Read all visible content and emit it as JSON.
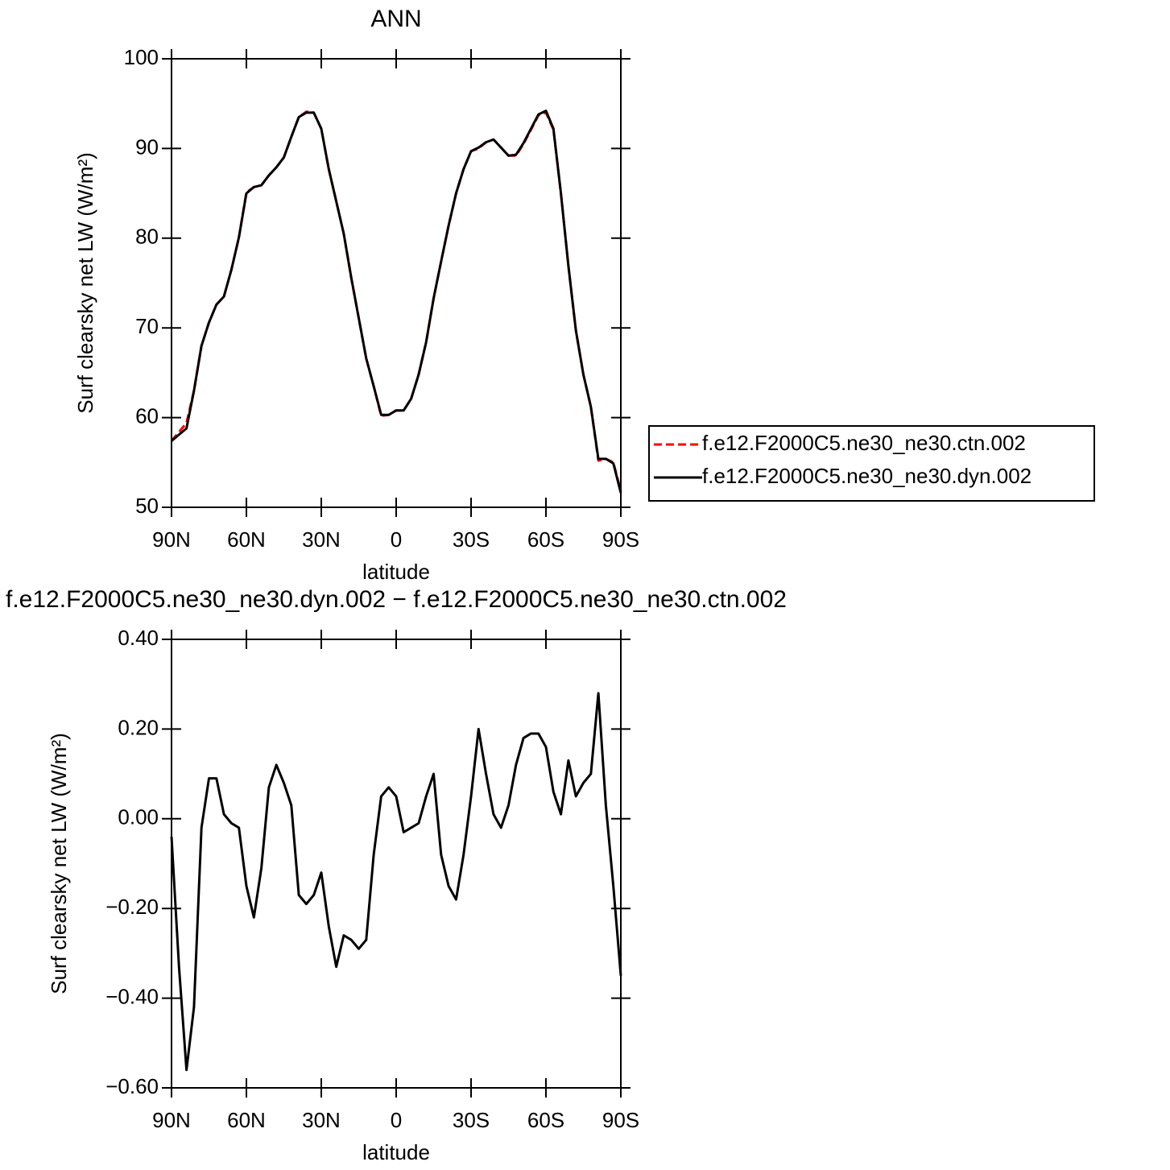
{
  "chart_data": [
    {
      "type": "line",
      "title": "ANN",
      "xlabel": "latitude",
      "ylabel": "Surf clearsky net LW (W/m²)",
      "x": [
        90,
        87,
        84,
        81,
        78,
        75,
        72,
        69,
        66,
        63,
        60,
        57,
        54,
        51,
        48,
        45,
        42,
        39,
        36,
        33,
        30,
        27,
        24,
        21,
        18,
        15,
        12,
        9,
        6,
        3,
        0,
        -3,
        -6,
        -9,
        -12,
        -15,
        -18,
        -21,
        -24,
        -27,
        -30,
        -33,
        -36,
        -39,
        -42,
        -45,
        -48,
        -51,
        -54,
        -57,
        -60,
        -63,
        -66,
        -69,
        -72,
        -75,
        -78,
        -81,
        -84,
        -87,
        -90
      ],
      "xlim": [
        90,
        -90
      ],
      "xticks": [
        {
          "value": 90,
          "label": "90N"
        },
        {
          "value": 60,
          "label": "60N"
        },
        {
          "value": 30,
          "label": "30N"
        },
        0,
        {
          "value": -30,
          "label": "30S"
        },
        {
          "value": -60,
          "label": "60S"
        },
        {
          "value": -90,
          "label": "90S"
        }
      ],
      "ylim": [
        50,
        100
      ],
      "yticks": [
        50,
        60,
        70,
        80,
        90,
        100
      ],
      "legend": "outside right",
      "series": [
        {
          "name": "f.e12.F2000C5.ne30_ne30.ctn.002",
          "color": "#ff0000",
          "linestyle": "dashed",
          "values": [
            57.4,
            58.4,
            59.4,
            63.0,
            68.0,
            70.6,
            72.6,
            73.5,
            76.5,
            80.1,
            85.1,
            85.7,
            85.9,
            87.0,
            87.9,
            89.0,
            91.3,
            93.5,
            94.1,
            94.0,
            92.2,
            87.7,
            84.1,
            80.5,
            75.6,
            71.1,
            66.6,
            63.5,
            60.2,
            60.3,
            60.8,
            60.8,
            62.1,
            64.8,
            68.4,
            73.3,
            77.4,
            81.4,
            85.0,
            87.7,
            89.7,
            90.0,
            90.7,
            91.0,
            90.1,
            89.2,
            89.2,
            90.5,
            92.1,
            93.7,
            94.0,
            92.1,
            85.0,
            76.9,
            69.7,
            64.8,
            61.2,
            55.2,
            55.4,
            55.0,
            51.8
          ]
        },
        {
          "name": "f.e12.F2000C5.ne30_ne30.dyn.002",
          "color": "#000000",
          "linestyle": "solid",
          "values": [
            57.4,
            58.1,
            58.8,
            63.0,
            68.0,
            70.6,
            72.6,
            73.5,
            76.5,
            80.1,
            85.0,
            85.7,
            85.9,
            87.0,
            87.9,
            89.0,
            91.3,
            93.5,
            94.0,
            94.0,
            92.2,
            87.7,
            84.1,
            80.5,
            75.6,
            71.1,
            66.6,
            63.5,
            60.3,
            60.3,
            60.8,
            60.8,
            62.1,
            64.8,
            68.4,
            73.3,
            77.4,
            81.4,
            85.0,
            87.7,
            89.7,
            90.1,
            90.7,
            91.0,
            90.1,
            89.2,
            89.3,
            90.6,
            92.2,
            93.8,
            94.2,
            92.2,
            85.0,
            76.9,
            69.7,
            64.8,
            61.2,
            55.4,
            55.4,
            54.9,
            51.6
          ]
        }
      ]
    },
    {
      "type": "line",
      "title": "f.e12.F2000C5.ne30_ne30.dyn.002 − f.e12.F2000C5.ne30_ne30.ctn.002",
      "xlabel": "latitude",
      "ylabel": "Surf clearsky net LW (W/m²)",
      "x": [
        90,
        87,
        84,
        81,
        78,
        75,
        72,
        69,
        66,
        63,
        60,
        57,
        54,
        51,
        48,
        45,
        42,
        39,
        36,
        33,
        30,
        27,
        24,
        21,
        18,
        15,
        12,
        9,
        6,
        3,
        0,
        -3,
        -6,
        -9,
        -12,
        -15,
        -18,
        -21,
        -24,
        -27,
        -30,
        -33,
        -36,
        -39,
        -42,
        -45,
        -48,
        -51,
        -54,
        -57,
        -60,
        -63,
        -66,
        -69,
        -72,
        -75,
        -78,
        -81,
        -84,
        -87,
        -90
      ],
      "xlim": [
        90,
        -90
      ],
      "xticks": [
        {
          "value": 90,
          "label": "90N"
        },
        {
          "value": 60,
          "label": "60N"
        },
        {
          "value": 30,
          "label": "30N"
        },
        0,
        {
          "value": -30,
          "label": "30S"
        },
        {
          "value": -60,
          "label": "60S"
        },
        {
          "value": -90,
          "label": "90S"
        }
      ],
      "ylim": [
        -0.6,
        0.4
      ],
      "yticks": [
        {
          "value": -0.6,
          "label": "−0.60"
        },
        {
          "value": -0.4,
          "label": "−0.40"
        },
        {
          "value": -0.2,
          "label": "−0.20"
        },
        {
          "value": 0,
          "label": "0.00"
        },
        {
          "value": 0.2,
          "label": "0.20"
        },
        {
          "value": 0.4,
          "label": "0.40"
        }
      ],
      "series": [
        {
          "color": "#000000",
          "linestyle": "solid",
          "values": [
            -0.04,
            -0.33,
            -0.56,
            -0.42,
            -0.02,
            0.09,
            0.09,
            0.01,
            -0.01,
            -0.02,
            -0.15,
            -0.22,
            -0.11,
            0.07,
            0.12,
            0.08,
            0.03,
            -0.17,
            -0.19,
            -0.17,
            -0.12,
            -0.24,
            -0.33,
            -0.26,
            -0.27,
            -0.29,
            -0.27,
            -0.08,
            0.05,
            0.07,
            0.05,
            -0.03,
            -0.02,
            -0.01,
            0.05,
            0.1,
            -0.08,
            -0.15,
            -0.18,
            -0.08,
            0.05,
            0.2,
            0.1,
            0.01,
            -0.02,
            0.03,
            0.12,
            0.18,
            0.19,
            0.19,
            0.16,
            0.06,
            0.01,
            0.13,
            0.05,
            0.08,
            0.1,
            0.28,
            0.03,
            -0.15,
            -0.35
          ]
        }
      ]
    }
  ]
}
